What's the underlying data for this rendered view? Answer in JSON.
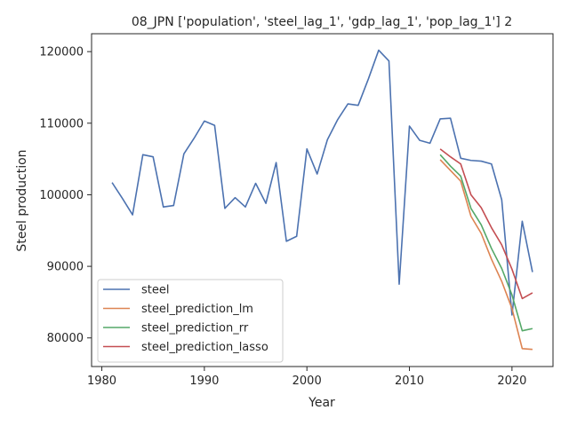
{
  "chart_data": {
    "type": "line",
    "title": "08_JPN ['population', 'steel_lag_1', 'gdp_lag_1', 'pop_lag_1'] 2",
    "xlabel": "Year",
    "ylabel": "Steel production",
    "xlim": [
      1979,
      2024
    ],
    "ylim": [
      76000,
      122500
    ],
    "xticks": [
      1980,
      1990,
      2000,
      2010,
      2020
    ],
    "yticks": [
      80000,
      90000,
      100000,
      110000,
      120000
    ],
    "legend_position": "lower-left",
    "grid": false,
    "series": [
      {
        "name": "steel",
        "color": "#4c72b0",
        "x": [
          1981,
          1982,
          1983,
          1984,
          1985,
          1986,
          1987,
          1988,
          1989,
          1990,
          1991,
          1992,
          1993,
          1994,
          1995,
          1996,
          1997,
          1998,
          1999,
          2000,
          2001,
          2002,
          2003,
          2004,
          2005,
          2006,
          2007,
          2008,
          2009,
          2010,
          2011,
          2012,
          2013,
          2014,
          2015,
          2016,
          2017,
          2018,
          2019,
          2020,
          2021,
          2022
        ],
        "y": [
          101700,
          99500,
          97200,
          105600,
          105300,
          98300,
          98500,
          105700,
          107900,
          110300,
          109700,
          98100,
          99600,
          98300,
          101600,
          98800,
          104500,
          93500,
          94200,
          106400,
          102900,
          107700,
          110500,
          112700,
          112500,
          116200,
          120200,
          118700,
          87500,
          109600,
          107600,
          107200,
          110600,
          110700,
          105100,
          104800,
          104700,
          104300,
          99300,
          83200,
          96300,
          89200
        ]
      },
      {
        "name": "steel_prediction_lm",
        "color": "#dd8452",
        "x": [
          2013,
          2014,
          2015,
          2016,
          2017,
          2018,
          2019,
          2020,
          2021,
          2022
        ],
        "y": [
          104900,
          103400,
          101900,
          97000,
          94600,
          91000,
          87900,
          84100,
          78500,
          78400
        ]
      },
      {
        "name": "steel_prediction_rr",
        "color": "#55a868",
        "x": [
          2013,
          2014,
          2015,
          2016,
          2017,
          2018,
          2019,
          2020,
          2021,
          2022
        ],
        "y": [
          105600,
          104000,
          102600,
          98100,
          95800,
          92500,
          89700,
          86000,
          81000,
          81300
        ]
      },
      {
        "name": "steel_prediction_lasso",
        "color": "#c44e52",
        "x": [
          2013,
          2014,
          2015,
          2016,
          2017,
          2018,
          2019,
          2020,
          2021,
          2022
        ],
        "y": [
          106400,
          105300,
          104300,
          100000,
          98200,
          95400,
          93000,
          89600,
          85500,
          86300
        ]
      }
    ]
  }
}
